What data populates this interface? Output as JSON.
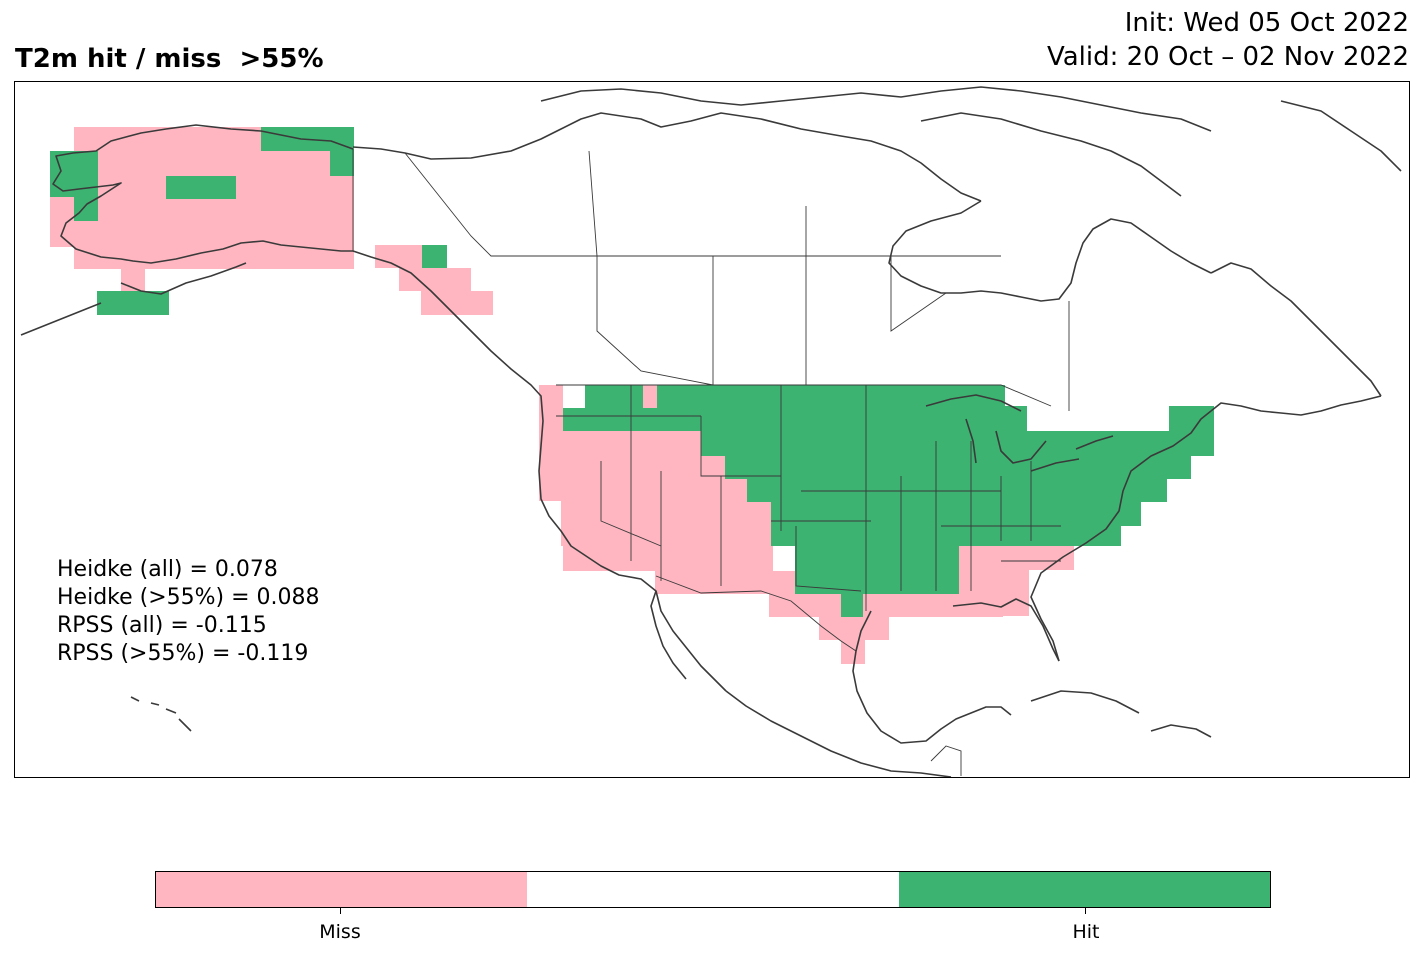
{
  "header": {
    "title": "T2m hit / miss  >55%",
    "init": "Init: Wed 05 Oct 2022",
    "valid": "Valid: 20 Oct – 02 Nov 2022"
  },
  "scores": [
    "Heidke (all) = 0.078",
    "Heidke (>55%) = 0.088",
    "RPSS (all) = -0.115",
    "RPSS (>55%) = -0.119"
  ],
  "legend": {
    "categories": [
      {
        "label": "Miss",
        "color": "#ffb6c1"
      },
      {
        "label": "",
        "color": "#ffffff"
      },
      {
        "label": "Hit",
        "color": "#3cb371"
      }
    ]
  },
  "colors": {
    "miss": "#ffb6c1",
    "hit": "#3cb371",
    "coastline": "#3a3a3a"
  }
}
